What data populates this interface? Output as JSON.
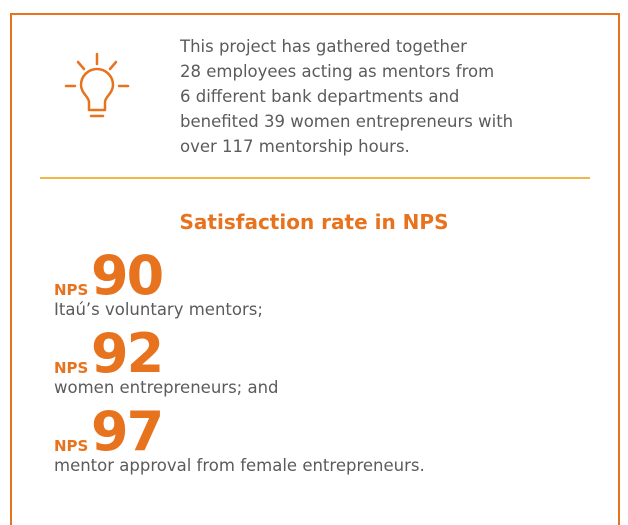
{
  "intro": {
    "lines": [
      "This project has gathered together",
      "28 employees acting as mentors from",
      "6 different bank departments and",
      "benefited 39 women entrepreneurs with",
      "over 117 mentorship hours."
    ]
  },
  "title": "Satisfaction rate in NPS",
  "items": [
    {
      "label": "NPS",
      "value": 90,
      "description": "Itaú’s voluntary mentors;"
    },
    {
      "label": "NPS",
      "value": 92,
      "description": "women entrepreneurs; and"
    },
    {
      "label": "NPS",
      "value": 97,
      "description": "mentor approval from female entrepreneurs."
    }
  ]
}
